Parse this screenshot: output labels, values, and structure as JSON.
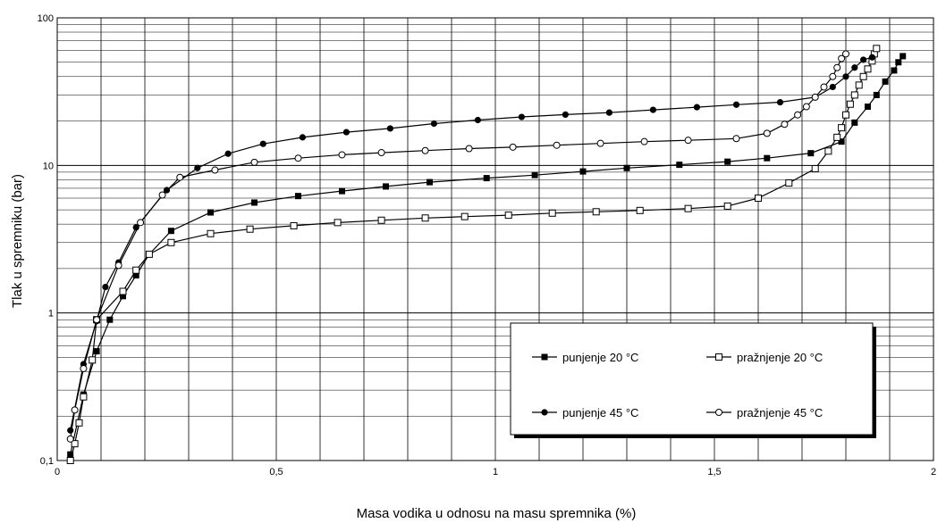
{
  "chart_data": {
    "type": "line",
    "title": "",
    "xlabel": "Masa vodika u odnosu na masu spremnika (%)",
    "ylabel": "Tlak u spremniku (bar)",
    "xlim": [
      0,
      2
    ],
    "ylim": [
      0.1,
      100
    ],
    "yscale": "log",
    "grid": true,
    "x_ticks": [
      {
        "value": 0,
        "label": "0"
      },
      {
        "value": 0.5,
        "label": "0,5"
      },
      {
        "value": 1,
        "label": "1"
      },
      {
        "value": 1.5,
        "label": "1,5"
      },
      {
        "value": 2,
        "label": "2"
      }
    ],
    "y_ticks": [
      {
        "value": 0.1,
        "label": "0,1"
      },
      {
        "value": 1,
        "label": "1"
      },
      {
        "value": 10,
        "label": "10"
      },
      {
        "value": 100,
        "label": "100"
      }
    ],
    "legend_position": "bottom-right",
    "series": [
      {
        "name": "punjenje 20 °C",
        "marker": "filled-square",
        "points": [
          [
            0.03,
            0.11
          ],
          [
            0.06,
            0.28
          ],
          [
            0.09,
            0.55
          ],
          [
            0.12,
            0.9
          ],
          [
            0.15,
            1.3
          ],
          [
            0.18,
            1.8
          ],
          [
            0.21,
            2.5
          ],
          [
            0.26,
            3.6
          ],
          [
            0.35,
            4.8
          ],
          [
            0.45,
            5.6
          ],
          [
            0.55,
            6.2
          ],
          [
            0.65,
            6.7
          ],
          [
            0.75,
            7.2
          ],
          [
            0.85,
            7.7
          ],
          [
            0.98,
            8.2
          ],
          [
            1.09,
            8.6
          ],
          [
            1.2,
            9.1
          ],
          [
            1.3,
            9.6
          ],
          [
            1.42,
            10.1
          ],
          [
            1.53,
            10.6
          ],
          [
            1.62,
            11.2
          ],
          [
            1.72,
            12.1
          ],
          [
            1.79,
            14.5
          ],
          [
            1.82,
            19.5
          ],
          [
            1.85,
            25
          ],
          [
            1.87,
            30
          ],
          [
            1.89,
            37
          ],
          [
            1.91,
            44
          ],
          [
            1.92,
            50
          ],
          [
            1.93,
            55
          ]
        ]
      },
      {
        "name": "pražnjenje 20 °C",
        "marker": "open-square",
        "points": [
          [
            0.03,
            0.1
          ],
          [
            0.04,
            0.13
          ],
          [
            0.05,
            0.18
          ],
          [
            0.06,
            0.27
          ],
          [
            0.08,
            0.48
          ],
          [
            0.09,
            0.9
          ],
          [
            0.15,
            1.4
          ],
          [
            0.18,
            1.95
          ],
          [
            0.21,
            2.5
          ],
          [
            0.26,
            3
          ],
          [
            0.35,
            3.45
          ],
          [
            0.44,
            3.7
          ],
          [
            0.54,
            3.9
          ],
          [
            0.64,
            4.1
          ],
          [
            0.74,
            4.25
          ],
          [
            0.84,
            4.4
          ],
          [
            0.93,
            4.5
          ],
          [
            1.03,
            4.6
          ],
          [
            1.13,
            4.75
          ],
          [
            1.23,
            4.85
          ],
          [
            1.33,
            4.95
          ],
          [
            1.44,
            5.1
          ],
          [
            1.53,
            5.3
          ],
          [
            1.6,
            6
          ],
          [
            1.67,
            7.6
          ],
          [
            1.73,
            9.5
          ],
          [
            1.76,
            12.5
          ],
          [
            1.78,
            15.5
          ],
          [
            1.79,
            18
          ],
          [
            1.8,
            22
          ],
          [
            1.81,
            26
          ],
          [
            1.82,
            30
          ],
          [
            1.83,
            35
          ],
          [
            1.84,
            40
          ],
          [
            1.85,
            45
          ],
          [
            1.86,
            51
          ],
          [
            1.865,
            57
          ],
          [
            1.87,
            62
          ]
        ]
      },
      {
        "name": "punjenje 45 °C",
        "marker": "filled-circle",
        "points": [
          [
            0.03,
            0.16
          ],
          [
            0.06,
            0.45
          ],
          [
            0.09,
            0.88
          ],
          [
            0.11,
            1.5
          ],
          [
            0.14,
            2.2
          ],
          [
            0.18,
            3.8
          ],
          [
            0.25,
            6.8
          ],
          [
            0.32,
            9.6
          ],
          [
            0.39,
            12
          ],
          [
            0.47,
            14
          ],
          [
            0.56,
            15.5
          ],
          [
            0.66,
            16.8
          ],
          [
            0.76,
            17.8
          ],
          [
            0.86,
            19.2
          ],
          [
            0.96,
            20.3
          ],
          [
            1.06,
            21.3
          ],
          [
            1.16,
            22.1
          ],
          [
            1.26,
            22.8
          ],
          [
            1.36,
            23.8
          ],
          [
            1.46,
            24.8
          ],
          [
            1.55,
            25.8
          ],
          [
            1.65,
            26.8
          ],
          [
            1.73,
            29
          ],
          [
            1.77,
            34
          ],
          [
            1.8,
            40
          ],
          [
            1.82,
            46
          ],
          [
            1.84,
            52
          ],
          [
            1.86,
            54
          ]
        ]
      },
      {
        "name": "pražnjenje 45 °C",
        "marker": "open-circle",
        "points": [
          [
            0.03,
            0.14
          ],
          [
            0.04,
            0.22
          ],
          [
            0.06,
            0.42
          ],
          [
            0.09,
            0.9
          ],
          [
            0.14,
            2.1
          ],
          [
            0.19,
            4.1
          ],
          [
            0.24,
            6.3
          ],
          [
            0.28,
            8.3
          ],
          [
            0.36,
            9.3
          ],
          [
            0.45,
            10.5
          ],
          [
            0.55,
            11.2
          ],
          [
            0.65,
            11.8
          ],
          [
            0.74,
            12.2
          ],
          [
            0.84,
            12.6
          ],
          [
            0.94,
            13
          ],
          [
            1.04,
            13.3
          ],
          [
            1.14,
            13.7
          ],
          [
            1.24,
            14.1
          ],
          [
            1.34,
            14.5
          ],
          [
            1.44,
            14.8
          ],
          [
            1.55,
            15.2
          ],
          [
            1.62,
            16.5
          ],
          [
            1.66,
            19
          ],
          [
            1.69,
            22
          ],
          [
            1.71,
            25
          ],
          [
            1.73,
            29
          ],
          [
            1.75,
            34
          ],
          [
            1.77,
            40
          ],
          [
            1.78,
            46
          ],
          [
            1.79,
            53
          ],
          [
            1.8,
            57
          ]
        ]
      }
    ]
  }
}
